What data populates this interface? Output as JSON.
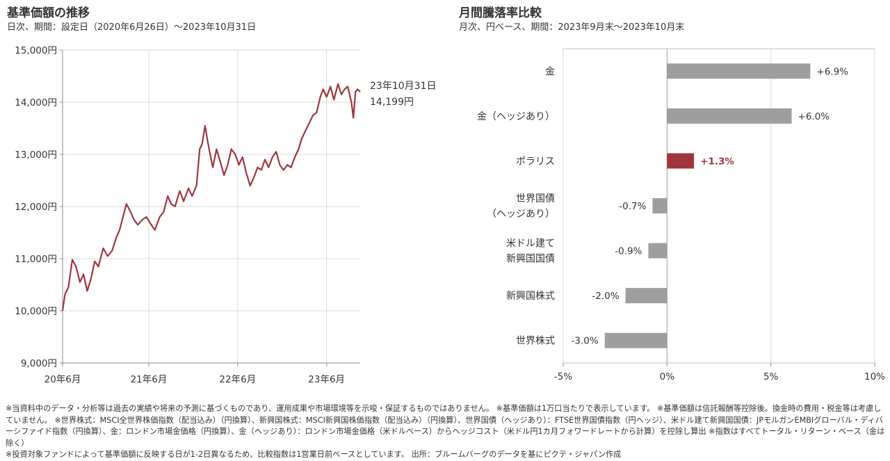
{
  "left_panel": {
    "title": "基準価額の推移",
    "subtitle": "日次、期間：設定日（2020年6月26日）～2023年10月31日"
  },
  "right_panel": {
    "title": "月間騰落率比較",
    "subtitle": "月次、円ベース、期間：2023年9月末～2023年10月末"
  },
  "chart_data": [
    {
      "type": "line",
      "title": "基準価額の推移",
      "ylim": [
        9000,
        15000
      ],
      "y_ticks": [
        9000,
        10000,
        11000,
        12000,
        13000,
        14000,
        15000
      ],
      "y_tick_labels": [
        "9,000円",
        "10,000円",
        "11,000円",
        "12,000円",
        "13,000円",
        "14,000円",
        "15,000円"
      ],
      "x_tick_labels": [
        "20年6月",
        "21年6月",
        "22年6月",
        "23年6月"
      ],
      "xlim": [
        "2020-06-26",
        "2023-10-31"
      ],
      "grid": true,
      "series": [
        {
          "color": "#a0363b",
          "points": [
            [
              "2020-06-26",
              10000
            ],
            [
              "2020-07-06",
              10320
            ],
            [
              "2020-07-20",
              10450
            ],
            [
              "2020-08-05",
              10980
            ],
            [
              "2020-08-20",
              10850
            ],
            [
              "2020-09-05",
              10550
            ],
            [
              "2020-09-20",
              10700
            ],
            [
              "2020-10-05",
              10380
            ],
            [
              "2020-10-20",
              10600
            ],
            [
              "2020-11-05",
              10950
            ],
            [
              "2020-11-20",
              10850
            ],
            [
              "2020-12-10",
              11200
            ],
            [
              "2020-12-28",
              11050
            ],
            [
              "2021-01-15",
              11150
            ],
            [
              "2021-02-01",
              11400
            ],
            [
              "2021-02-15",
              11550
            ],
            [
              "2021-03-01",
              11800
            ],
            [
              "2021-03-15",
              12050
            ],
            [
              "2021-04-01",
              11900
            ],
            [
              "2021-04-15",
              11750
            ],
            [
              "2021-05-01",
              11650
            ],
            [
              "2021-05-20",
              11750
            ],
            [
              "2021-06-05",
              11800
            ],
            [
              "2021-06-25",
              11650
            ],
            [
              "2021-07-10",
              11550
            ],
            [
              "2021-07-30",
              11800
            ],
            [
              "2021-08-15",
              11900
            ],
            [
              "2021-09-01",
              12200
            ],
            [
              "2021-09-15",
              12050
            ],
            [
              "2021-10-01",
              12000
            ],
            [
              "2021-10-20",
              12300
            ],
            [
              "2021-11-05",
              12100
            ],
            [
              "2021-11-25",
              12350
            ],
            [
              "2021-12-10",
              12200
            ],
            [
              "2021-12-28",
              12400
            ],
            [
              "2022-01-10",
              13100
            ],
            [
              "2022-01-20",
              13200
            ],
            [
              "2022-02-01",
              13550
            ],
            [
              "2022-02-10",
              13300
            ],
            [
              "2022-02-20",
              13050
            ],
            [
              "2022-03-05",
              12750
            ],
            [
              "2022-03-20",
              13100
            ],
            [
              "2022-04-05",
              12850
            ],
            [
              "2022-04-20",
              12600
            ],
            [
              "2022-05-05",
              12800
            ],
            [
              "2022-05-20",
              13100
            ],
            [
              "2022-06-05",
              13000
            ],
            [
              "2022-06-20",
              12800
            ],
            [
              "2022-07-05",
              12950
            ],
            [
              "2022-07-20",
              12650
            ],
            [
              "2022-08-05",
              12400
            ],
            [
              "2022-08-20",
              12550
            ],
            [
              "2022-09-05",
              12750
            ],
            [
              "2022-09-20",
              12700
            ],
            [
              "2022-10-05",
              12900
            ],
            [
              "2022-10-20",
              12750
            ],
            [
              "2022-11-05",
              12950
            ],
            [
              "2022-11-20",
              13050
            ],
            [
              "2022-12-05",
              12800
            ],
            [
              "2022-12-20",
              12700
            ],
            [
              "2023-01-05",
              12800
            ],
            [
              "2023-01-20",
              12750
            ],
            [
              "2023-02-05",
              12950
            ],
            [
              "2023-02-20",
              13100
            ],
            [
              "2023-03-05",
              13300
            ],
            [
              "2023-03-20",
              13450
            ],
            [
              "2023-04-05",
              13600
            ],
            [
              "2023-04-20",
              13750
            ],
            [
              "2023-05-05",
              13800
            ],
            [
              "2023-05-20",
              14100
            ],
            [
              "2023-06-01",
              14250
            ],
            [
              "2023-06-15",
              14100
            ],
            [
              "2023-07-01",
              14300
            ],
            [
              "2023-07-15",
              14050
            ],
            [
              "2023-08-01",
              14350
            ],
            [
              "2023-08-15",
              14150
            ],
            [
              "2023-08-28",
              14250
            ],
            [
              "2023-09-10",
              14300
            ],
            [
              "2023-09-25",
              14000
            ],
            [
              "2023-10-03",
              13700
            ],
            [
              "2023-10-12",
              14200
            ],
            [
              "2023-10-20",
              14250
            ],
            [
              "2023-10-31",
              14199
            ]
          ]
        }
      ],
      "annotation": {
        "date_label": "23年10月31日",
        "value_label": "14,199円"
      }
    },
    {
      "type": "bar",
      "orientation": "horizontal",
      "title": "月間騰落率比較",
      "xlim": [
        -5,
        10
      ],
      "x_ticks": [
        -5,
        0,
        5,
        10
      ],
      "x_tick_labels": [
        "-5%",
        "0%",
        "5%",
        "10%"
      ],
      "grid": true,
      "categories": [
        [
          "金"
        ],
        [
          "金（ヘッジあり）"
        ],
        [
          "ポラリス"
        ],
        [
          "世界国債",
          "（ヘッジあり）"
        ],
        [
          "米ドル建て",
          "新興国国債"
        ],
        [
          "新興国株式"
        ],
        [
          "世界株式"
        ]
      ],
      "values": [
        6.9,
        6.0,
        1.3,
        -0.7,
        -0.9,
        -2.0,
        -3.0
      ],
      "value_labels": [
        "+6.9%",
        "+6.0%",
        "+1.3%",
        "-0.7%",
        "-0.9%",
        "-2.0%",
        "-3.0%"
      ],
      "highlight_index": 2,
      "colors": {
        "default": "#9e9e9e",
        "highlight": "#a0363b"
      }
    }
  ],
  "footnotes": [
    "※当資料中のデータ・分析等は過去の実績や将来の予測に基づくものであり、運用成果や市場環境等を示唆・保証するものではありません。 ※基準価額は1万口当たりで表示しています。 ※基準価額は信託報酬等控除後。換金時の費用・税金等は考慮していません。 ※世界株式：MSCI全世界株価指数（配当込み）（円換算）、新興国株式：MSCI新興国株価指数（配当込み）（円換算）、世界国債（ヘッジあり）：FTSE世界国債指数（円ヘッジ）、米ドル建て新興国国債：JPモルガンEMBIグローバル・ディバーシファイド指数（円換算）、金：ロンドン市場金価格（円換算）、金（ヘッジあり）：ロンドン市場金価格（米ドルベース）からヘッジコスト（米ドル円1カ月フォワードレートから計算）を控除し算出 ※指数はすべてトータル・リターン・ベース（金は除く）",
    "※投資対象ファンドによって基準価額に反映する日が1-2日異なるため、比較指数は1営業日前ベースとしています。 出所：ブルームバーグのデータを基にピクテ・ジャパン作成"
  ]
}
